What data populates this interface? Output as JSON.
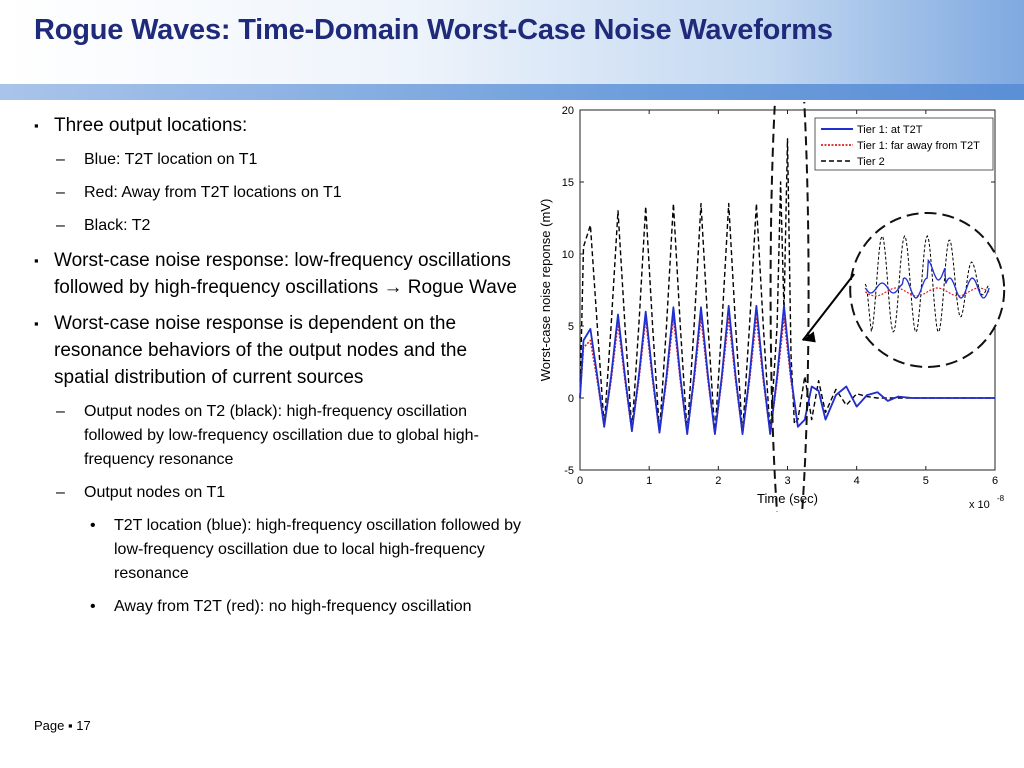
{
  "slide": {
    "title": "Rogue Waves: Time-Domain Worst-Case Noise Waveforms",
    "footer": {
      "page_label": "Page",
      "sep": "▪",
      "page_number": "17"
    },
    "bullets": [
      {
        "level": 1,
        "text": "Three output locations:"
      },
      {
        "level": 2,
        "text": "Blue: T2T location on T1"
      },
      {
        "level": 2,
        "text": "Red: Away from T2T locations on T1"
      },
      {
        "level": 2,
        "text": "Black: T2"
      },
      {
        "level": 1,
        "text": "Worst-case noise response: low-frequency oscillations followed by high-frequency oscillations",
        "arrow": "→",
        "tail": " Rogue Wave"
      },
      {
        "level": 1,
        "text": "Worst-case noise response is dependent on the resonance behaviors of the output nodes and the spatial distribution of current sources"
      },
      {
        "level": 2,
        "text": "Output nodes on T2 (black): high-frequency oscillation followed by low-frequency oscillation due to global high-frequency resonance"
      },
      {
        "level": 2,
        "text": "Output nodes on T1"
      },
      {
        "level": 3,
        "text": "T2T location (blue): high-frequency oscillation followed by low-frequency oscillation due to local high-frequency resonance"
      },
      {
        "level": 3,
        "text": "Away from T2T (red): no high-frequency oscillation"
      }
    ],
    "markers": {
      "level1": "▪",
      "level2": "–",
      "level3": "•"
    }
  },
  "chart_data": {
    "type": "line",
    "xlabel": "Time (sec)",
    "ylabel": "Worst-case noise reponse (mV)",
    "x_scale_label": "x 10",
    "x_scale_exp": "-8",
    "xlim": [
      0,
      6
    ],
    "ylim": [
      -5,
      20
    ],
    "xticks": [
      0,
      1,
      2,
      3,
      4,
      5,
      6
    ],
    "yticks": [
      -5,
      0,
      5,
      10,
      15,
      20
    ],
    "legend_position": "top-right",
    "grid": false,
    "series": [
      {
        "name": "Tier 1: at T2T",
        "color": "#1f2fd0",
        "style": "solid",
        "x": [
          0,
          0.05,
          0.15,
          0.25,
          0.35,
          0.45,
          0.55,
          0.65,
          0.75,
          0.85,
          0.95,
          1.05,
          1.15,
          1.25,
          1.35,
          1.45,
          1.55,
          1.65,
          1.75,
          1.85,
          1.95,
          2.05,
          2.15,
          2.25,
          2.35,
          2.45,
          2.55,
          2.65,
          2.75,
          2.85,
          2.95,
          3.05,
          3.15,
          3.25,
          3.35,
          3.45,
          3.55,
          3.7,
          3.85,
          4.0,
          4.15,
          4.3,
          4.45,
          4.6,
          4.8,
          5.0,
          5.3,
          5.6,
          6.0
        ],
        "y": [
          0,
          4.0,
          4.8,
          1.5,
          -2.0,
          1.5,
          5.8,
          1.5,
          -2.3,
          1.5,
          6.0,
          1.5,
          -2.4,
          1.5,
          6.3,
          1.5,
          -2.5,
          1.5,
          6.3,
          1.5,
          -2.5,
          1.5,
          6.4,
          1.5,
          -2.5,
          1.5,
          6.4,
          1.5,
          -2.5,
          1.5,
          6.4,
          1.5,
          -2.0,
          -1.5,
          0.8,
          0.5,
          -1.5,
          0.2,
          0.8,
          -0.6,
          0.2,
          0.4,
          -0.2,
          0.1,
          0,
          0,
          0,
          0,
          0
        ]
      },
      {
        "name": "Tier 1: far away from T2T",
        "color": "#e02020",
        "style": "dotted",
        "x": [
          0,
          0.05,
          0.15,
          0.25,
          0.35,
          0.45,
          0.55,
          0.65,
          0.75,
          0.85,
          0.95,
          1.05,
          1.15,
          1.25,
          1.35,
          1.45,
          1.55,
          1.65,
          1.75,
          1.85,
          1.95,
          2.05,
          2.15,
          2.25,
          2.35,
          2.45,
          2.55,
          2.65,
          2.75,
          2.85,
          2.95,
          3.05,
          3.15,
          3.25,
          3.35,
          3.45,
          3.55,
          3.7,
          3.85,
          4.0,
          4.15,
          4.3,
          4.45,
          4.6,
          4.8,
          5.0,
          5.3,
          5.6,
          6.0
        ],
        "y": [
          0,
          3.5,
          4.0,
          1.2,
          -2.0,
          1.2,
          5.2,
          1.2,
          -2.3,
          1.2,
          5.5,
          1.2,
          -2.4,
          1.2,
          5.6,
          1.2,
          -2.5,
          1.2,
          5.6,
          1.2,
          -2.5,
          1.2,
          5.6,
          1.2,
          -2.5,
          1.2,
          5.6,
          1.2,
          -2.5,
          1.2,
          5.6,
          1.2,
          -2.0,
          -1.5,
          0.8,
          0.5,
          -1.5,
          0.2,
          0.8,
          -0.6,
          0.2,
          0.4,
          -0.2,
          0.1,
          0,
          0,
          0,
          0,
          0
        ]
      },
      {
        "name": "Tier 2",
        "color": "#000000",
        "style": "dashed",
        "x": [
          0,
          0.05,
          0.15,
          0.25,
          0.35,
          0.45,
          0.55,
          0.65,
          0.75,
          0.85,
          0.95,
          1.05,
          1.15,
          1.25,
          1.35,
          1.45,
          1.55,
          1.65,
          1.75,
          1.85,
          1.95,
          2.05,
          2.15,
          2.25,
          2.35,
          2.45,
          2.55,
          2.65,
          2.75,
          2.85,
          2.9,
          2.95,
          3.0,
          3.05,
          3.1,
          3.15,
          3.25,
          3.35,
          3.45,
          3.55,
          3.7,
          3.85,
          4.0,
          4.15,
          4.3,
          4.45,
          4.6,
          4.8,
          5.0,
          5.3,
          5.6,
          6.0
        ],
        "y": [
          0,
          10.5,
          12.0,
          5.0,
          -2.0,
          5.0,
          13.0,
          5.0,
          -2.3,
          5.0,
          13.3,
          5.0,
          -2.4,
          5.0,
          13.5,
          5.0,
          -2.5,
          5.0,
          13.5,
          5.0,
          -2.5,
          5.0,
          13.5,
          5.0,
          -2.5,
          5.0,
          13.5,
          5.0,
          -2.5,
          5.0,
          15.0,
          6.0,
          18.0,
          3.0,
          -1.8,
          -1.5,
          1.5,
          -1.5,
          1.2,
          -1.0,
          0.6,
          -0.5,
          0.3,
          0.1,
          0,
          0,
          0,
          0,
          0,
          0,
          0,
          0
        ]
      }
    ],
    "annotations": [
      {
        "type": "ellipse",
        "shape": "dashed"
      },
      {
        "type": "circle-inset",
        "shape": "dashed"
      },
      {
        "type": "arrow"
      }
    ]
  }
}
